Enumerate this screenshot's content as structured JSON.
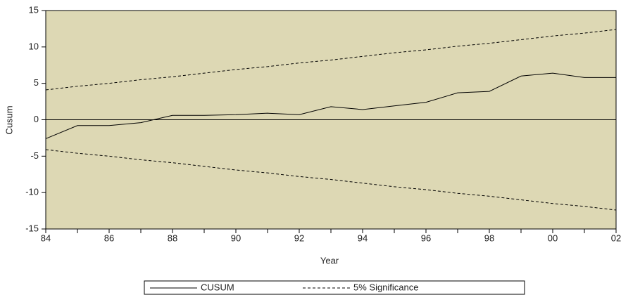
{
  "chart_data": {
    "type": "line",
    "x_label": "Year",
    "y_label": "Cusum",
    "categories": [
      "84",
      null,
      "86",
      null,
      "88",
      null,
      "90",
      null,
      "92",
      null,
      "94",
      null,
      "96",
      null,
      "98",
      null,
      "00",
      null,
      "02"
    ],
    "series": [
      {
        "name": "CUSUM",
        "color": "#000000",
        "dash": "none",
        "values": [
          -2.6,
          -0.8,
          -0.8,
          -0.4,
          0.6,
          0.6,
          0.7,
          0.9,
          0.7,
          1.8,
          1.4,
          1.9,
          2.4,
          3.7,
          3.9,
          6.0,
          6.4,
          5.8,
          5.8
        ]
      },
      {
        "name": "5% Significance",
        "color": "#000000",
        "dash": "4,3",
        "values": [
          4.1,
          4.6,
          5.0,
          5.5,
          5.9,
          6.4,
          6.9,
          7.3,
          7.8,
          8.2,
          8.7,
          9.2,
          9.6,
          10.1,
          10.5,
          11.0,
          11.5,
          11.9,
          12.4
        ],
        "lower": [
          -4.1,
          -4.6,
          -5.0,
          -5.5,
          -5.9,
          -6.4,
          -6.9,
          -7.3,
          -7.8,
          -8.2,
          -8.7,
          -9.2,
          -9.6,
          -10.1,
          -10.5,
          -11.0,
          -11.5,
          -11.9,
          -12.4
        ]
      }
    ],
    "ylim": [
      -15,
      15
    ],
    "yticks": [
      -15,
      -10,
      -5,
      0,
      5,
      10,
      15
    ],
    "zero_line": true,
    "plot_background": "#ddd8b4"
  }
}
